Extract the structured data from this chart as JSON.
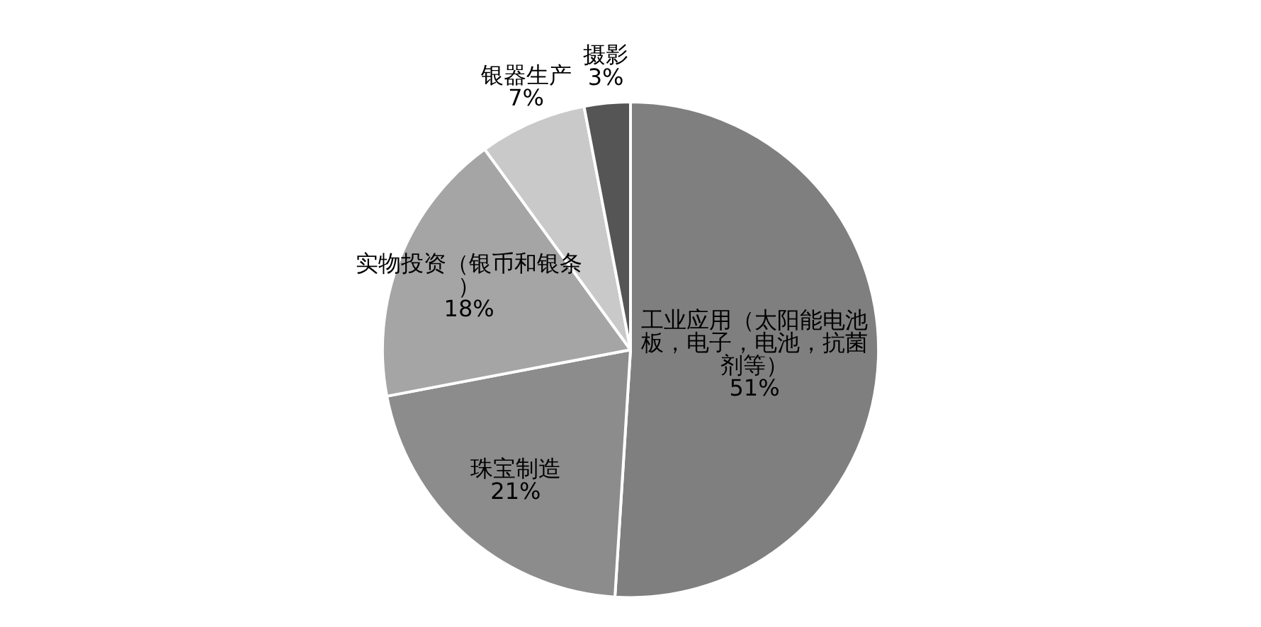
{
  "chart_data": {
    "type": "pie",
    "categories": [
      "工业应用（太阳能电池板，电子，电池，抗菌剂等）",
      "珠宝制造",
      "实物投资（银币和银条）",
      "银器生产",
      "摄影"
    ],
    "values": [
      51,
      21,
      18,
      7,
      3
    ],
    "colors": [
      "#7f7f7f",
      "#8c8c8c",
      "#a5a5a5",
      "#c9c9c9",
      "#555555"
    ],
    "value_labels": [
      "51%",
      "21%",
      "18%",
      "7%",
      "3%"
    ],
    "legend": false
  }
}
